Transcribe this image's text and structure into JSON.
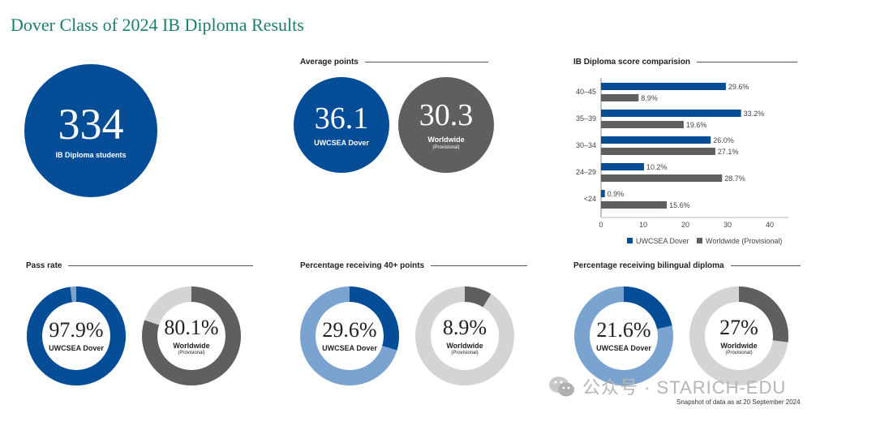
{
  "title": "Dover Class of 2024 IB Diploma Results",
  "students": {
    "value": "334",
    "label": "IB Diploma students"
  },
  "avg_points": {
    "heading": "Average points",
    "dover": {
      "value": "36.1",
      "label": "UWCSEA Dover"
    },
    "world": {
      "value": "30.3",
      "label": "Worldwide",
      "note": "(Provisional)"
    }
  },
  "pass_rate": {
    "heading": "Pass rate",
    "dover": {
      "value": "97.9%",
      "label": "UWCSEA Dover",
      "fraction": 0.979
    },
    "world": {
      "value": "80.1%",
      "label": "Worldwide",
      "note": "(Provisional)",
      "fraction": 0.801
    }
  },
  "forty_plus": {
    "heading": "Percentage receiving 40+ points",
    "dover": {
      "value": "29.6%",
      "label": "UWCSEA Dover",
      "fraction": 0.296
    },
    "world": {
      "value": "8.9%",
      "label": "Worldwide",
      "note": "(Provisional)",
      "fraction": 0.089
    }
  },
  "bilingual": {
    "heading": "Percentage receiving bilingual diploma",
    "dover": {
      "value": "21.6%",
      "label": "UWCSEA Dover",
      "fraction": 0.216
    },
    "world": {
      "value": "27%",
      "label": "Worldwide",
      "note": "(Provisional)",
      "fraction": 0.27
    }
  },
  "colors": {
    "dover": "#054e97",
    "dover_light": "#7ba3d0",
    "world": "#5f5f5f",
    "world_light": "#d4d4d4",
    "title": "#1a7f6b"
  },
  "chart_data": {
    "type": "bar",
    "title": "IB Diploma score comparision",
    "categories": [
      "40–45",
      "35–39",
      "30–34",
      "24–29",
      "<24"
    ],
    "series": [
      {
        "name": "UWCSEA Dover",
        "values": [
          29.6,
          33.2,
          26.0,
          10.2,
          0.9
        ],
        "labels": [
          "29.6%",
          "33.2%",
          "26.0%",
          "10.2%",
          "0.9%"
        ]
      },
      {
        "name": "Worldwide (Provisional)",
        "values": [
          8.9,
          19.6,
          27.1,
          28.7,
          15.6
        ],
        "labels": [
          "8.9%",
          "19.6%",
          "27.1%",
          "28.7%",
          "15.6%"
        ]
      }
    ],
    "xlim": [
      0,
      40
    ],
    "xticks": [
      "0",
      "10",
      "20",
      "30",
      "40"
    ],
    "orientation": "horizontal",
    "legend": "bottom"
  },
  "watermark": "公众号 · STARICH-EDU",
  "footnote": "Snapshot of data as at 20 September 2024"
}
